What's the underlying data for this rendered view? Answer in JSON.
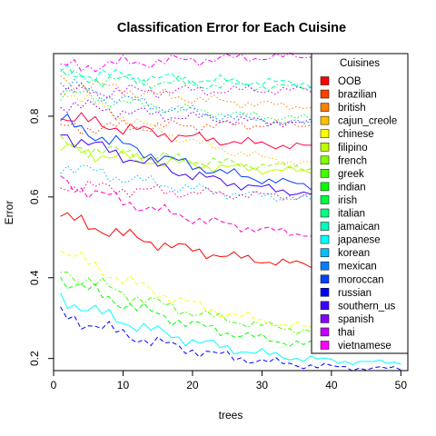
{
  "chart_data": {
    "type": "line",
    "title": "Classification Error for Each Cuisine",
    "xlabel": "trees",
    "ylabel": "Error",
    "xlim": [
      0,
      51
    ],
    "ylim": [
      0.17,
      0.955
    ],
    "x_ticks": [
      0,
      10,
      20,
      30,
      40,
      50
    ],
    "y_ticks": [
      0.2,
      0.4,
      0.6,
      0.8
    ],
    "legend_title": "Cuisines",
    "legend_position": "top-right",
    "grid": false,
    "x": [
      1,
      2,
      3,
      4,
      5,
      6,
      7,
      8,
      9,
      10,
      11,
      12,
      13,
      14,
      15,
      16,
      17,
      18,
      19,
      20,
      21,
      22,
      23,
      24,
      25,
      26,
      27,
      28,
      29,
      30,
      31,
      32,
      33,
      34,
      35,
      36,
      37,
      38,
      39,
      40,
      41,
      42,
      43,
      44,
      45,
      46,
      47,
      48,
      49,
      50
    ],
    "series": [
      {
        "name": "OOB",
        "color": "#ff0000",
        "dash": "solid",
        "start": 0.552,
        "end": 0.425
      },
      {
        "name": "brazilian",
        "color": "#ff4000",
        "dash": "dotted",
        "start": 0.77,
        "end": 0.78
      },
      {
        "name": "british",
        "color": "#ff8000",
        "dash": "dotted",
        "start": 0.89,
        "end": 0.82
      },
      {
        "name": "cajun_creole",
        "color": "#ffbf00",
        "dash": "dotted",
        "start": 0.87,
        "end": 0.67
      },
      {
        "name": "chinese",
        "color": "#ffff00",
        "dash": "dashed",
        "start": 0.47,
        "end": 0.265
      },
      {
        "name": "filipino",
        "color": "#bfff00",
        "dash": "solid",
        "start": 0.72,
        "end": 0.66
      },
      {
        "name": "french",
        "color": "#80ff00",
        "dash": "dashed",
        "start": 0.73,
        "end": 0.67
      },
      {
        "name": "greek",
        "color": "#40ff00",
        "dash": "dotdash",
        "start": 0.42,
        "end": 0.26
      },
      {
        "name": "indian",
        "color": "#00ff00",
        "dash": "dashed",
        "start": 0.4,
        "end": 0.225
      },
      {
        "name": "irish",
        "color": "#00ff40",
        "dash": "dotted",
        "start": 0.86,
        "end": 0.79
      },
      {
        "name": "italian",
        "color": "#00ff80",
        "dash": "dotdash",
        "start": 0.9,
        "end": 0.87
      },
      {
        "name": "jamaican",
        "color": "#00ffbf",
        "dash": "dashed",
        "start": 0.91,
        "end": 0.88
      },
      {
        "name": "japanese",
        "color": "#00ffff",
        "dash": "solid",
        "start": 0.35,
        "end": 0.19
      },
      {
        "name": "korean",
        "color": "#00bfff",
        "dash": "dotted",
        "start": 0.68,
        "end": 0.59
      },
      {
        "name": "mexican",
        "color": "#0080ff",
        "dash": "dotted",
        "start": 0.88,
        "end": 0.775
      },
      {
        "name": "moroccan",
        "color": "#0040ff",
        "dash": "solid",
        "start": 0.79,
        "end": 0.62
      },
      {
        "name": "russian",
        "color": "#0000ff",
        "dash": "dashed",
        "start": 0.31,
        "end": 0.175
      },
      {
        "name": "southern_us",
        "color": "#4000ff",
        "dash": "solid",
        "start": 0.76,
        "end": 0.6
      },
      {
        "name": "spanish",
        "color": "#8000ff",
        "dash": "dotted",
        "start": 0.83,
        "end": 0.78
      },
      {
        "name": "thai",
        "color": "#bf00ff",
        "dash": "dotted",
        "start": 0.86,
        "end": 0.865
      },
      {
        "name": "vietnamese",
        "color": "#ff00ff",
        "dash": "dotdash",
        "start": 0.92,
        "end": 0.95
      },
      {
        "name": "__s21",
        "color": "#ff00bf",
        "dash": "dashed",
        "start": 0.64,
        "end": 0.5
      },
      {
        "name": "__s22",
        "color": "#ff0080",
        "dash": "dotted",
        "start": 0.63,
        "end": 0.6
      },
      {
        "name": "__s23",
        "color": "#ff0040",
        "dash": "solid",
        "start": 0.8,
        "end": 0.72
      }
    ],
    "legend_items": [
      "OOB",
      "brazilian",
      "british",
      "cajun_creole",
      "chinese",
      "filipino",
      "french",
      "greek",
      "indian",
      "irish",
      "italian",
      "jamaican",
      "japanese",
      "korean",
      "mexican",
      "moroccan",
      "russian",
      "southern_us",
      "spanish",
      "thai",
      "vietnamese"
    ],
    "legend_colors": [
      "#ff0000",
      "#ff4000",
      "#ff8000",
      "#ffbf00",
      "#ffff00",
      "#bfff00",
      "#80ff00",
      "#40ff00",
      "#00ff00",
      "#00ff40",
      "#00ff80",
      "#00ffbf",
      "#00ffff",
      "#00bfff",
      "#0080ff",
      "#0040ff",
      "#0000ff",
      "#4000ff",
      "#8000ff",
      "#bf00ff",
      "#ff00ff"
    ]
  }
}
